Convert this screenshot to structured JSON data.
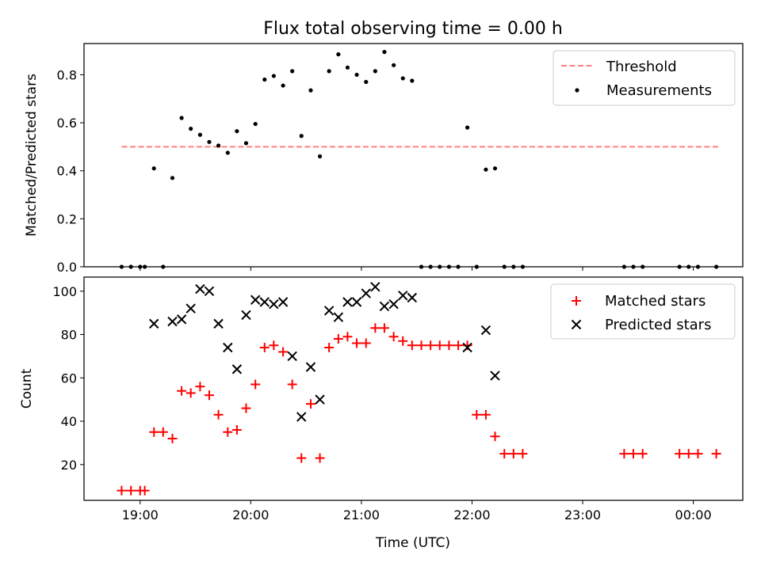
{
  "chart_data": [
    {
      "type": "scatter",
      "title": "Flux total observing time = 0.00 h",
      "ylabel": "Matched/Predicted stars",
      "ylim": [
        0,
        0.93
      ],
      "yticks": [
        0.0,
        0.2,
        0.4,
        0.6,
        0.8
      ],
      "ytick_labels": [
        "0.0",
        "0.2",
        "0.4",
        "0.6",
        "0.8"
      ],
      "xlim_hours": [
        18.493,
        24.447
      ],
      "xticks_hours": [
        19,
        20,
        21,
        22,
        23,
        24
      ],
      "legend": {
        "placement": "top-right"
      },
      "threshold": {
        "name": "Threshold",
        "value": 0.5,
        "x_range_hours": [
          18.833,
          24.233
        ],
        "color": "#ff7f7f"
      },
      "series": [
        {
          "name": "Measurements",
          "color": "#000000",
          "marker": "dot",
          "x_hours": [
            18.833,
            18.917,
            19.0,
            19.042,
            19.125,
            19.208,
            19.292,
            19.375,
            19.458,
            19.542,
            19.625,
            19.708,
            19.792,
            19.875,
            19.958,
            20.042,
            20.125,
            20.208,
            20.292,
            20.375,
            20.458,
            20.542,
            20.625,
            20.708,
            20.792,
            20.875,
            20.958,
            21.042,
            21.125,
            21.208,
            21.292,
            21.375,
            21.458,
            21.542,
            21.625,
            21.708,
            21.792,
            21.875,
            21.958,
            22.042,
            22.125,
            22.208,
            22.292,
            22.375,
            22.458,
            23.375,
            23.458,
            23.542,
            23.875,
            23.958,
            24.042,
            24.208
          ],
          "y": [
            0.0,
            0.0,
            0.0,
            0.0,
            0.41,
            0.0,
            0.37,
            0.62,
            0.575,
            0.55,
            0.52,
            0.505,
            0.475,
            0.565,
            0.515,
            0.595,
            0.78,
            0.795,
            0.755,
            0.815,
            0.545,
            0.735,
            0.46,
            0.815,
            0.885,
            0.83,
            0.8,
            0.77,
            0.815,
            0.895,
            0.84,
            0.785,
            0.775,
            0.0,
            0.0,
            0.0,
            0.0,
            0.0,
            0.58,
            0.0,
            0.405,
            0.41,
            0.0,
            0.0,
            0.0,
            0.0,
            0.0,
            0.0,
            0.0,
            0.0,
            0.0,
            0.0
          ]
        }
      ]
    },
    {
      "type": "scatter",
      "xlabel": "Time (UTC)",
      "ylabel": "Count",
      "ylim": [
        3.5,
        106.5
      ],
      "yticks": [
        20,
        40,
        60,
        80,
        100
      ],
      "ytick_labels": [
        "20",
        "40",
        "60",
        "80",
        "100"
      ],
      "xlim_hours": [
        18.493,
        24.447
      ],
      "xticks_hours": [
        19,
        20,
        21,
        22,
        23,
        24
      ],
      "xtick_labels": [
        "19:00",
        "20:00",
        "21:00",
        "22:00",
        "23:00",
        "00:00"
      ],
      "legend": {
        "placement": "top-right"
      },
      "series": [
        {
          "name": "Matched stars",
          "color": "#ff0000",
          "marker": "plus",
          "x_hours": [
            18.833,
            18.917,
            19.0,
            19.042,
            19.125,
            19.208,
            19.292,
            19.375,
            19.458,
            19.542,
            19.625,
            19.708,
            19.792,
            19.875,
            19.958,
            20.042,
            20.125,
            20.208,
            20.292,
            20.375,
            20.458,
            20.542,
            20.625,
            20.708,
            20.792,
            20.875,
            20.958,
            21.042,
            21.125,
            21.208,
            21.292,
            21.375,
            21.458,
            21.542,
            21.625,
            21.708,
            21.792,
            21.875,
            21.958,
            22.042,
            22.125,
            22.208,
            22.292,
            22.375,
            22.458,
            23.375,
            23.458,
            23.542,
            23.875,
            23.958,
            24.042,
            24.208
          ],
          "y": [
            8,
            8,
            8,
            8,
            35,
            35,
            32,
            54,
            53,
            56,
            52,
            43,
            35,
            36,
            46,
            57,
            74,
            75,
            72,
            57,
            23,
            48,
            23,
            74,
            78,
            79,
            76,
            76,
            83,
            83,
            79,
            77,
            75,
            75,
            75,
            75,
            75,
            75,
            75,
            43,
            43,
            33,
            25,
            25,
            25,
            25,
            25,
            25,
            25,
            25,
            25,
            25
          ]
        },
        {
          "name": "Predicted stars",
          "color": "#000000",
          "marker": "x",
          "x_hours": [
            19.125,
            19.292,
            19.375,
            19.458,
            19.542,
            19.625,
            19.708,
            19.792,
            19.875,
            19.958,
            20.042,
            20.125,
            20.208,
            20.292,
            20.375,
            20.458,
            20.542,
            20.625,
            20.708,
            20.792,
            20.875,
            20.958,
            21.042,
            21.125,
            21.208,
            21.292,
            21.375,
            21.458,
            21.958,
            22.125,
            22.208
          ],
          "y": [
            85,
            86,
            87,
            92,
            101,
            100,
            85,
            74,
            64,
            89,
            96,
            95,
            94,
            95,
            70,
            42,
            65,
            50,
            91,
            88,
            95,
            95,
            99,
            102,
            93,
            94,
            98,
            97,
            74,
            82,
            61
          ]
        }
      ]
    }
  ]
}
